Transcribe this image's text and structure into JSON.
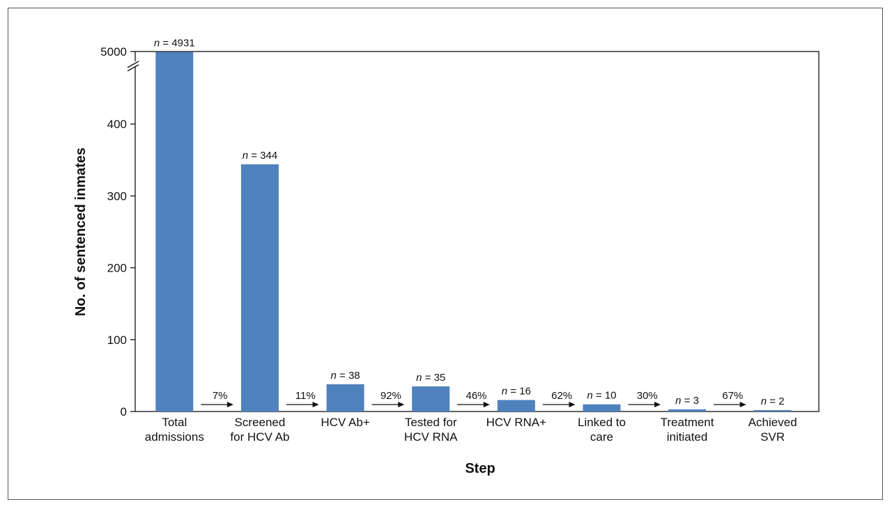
{
  "chart_data": {
    "type": "bar",
    "title": "",
    "xlabel": "Step",
    "ylabel": "No. of sentenced inmates",
    "categories": [
      [
        "Total",
        "admissions"
      ],
      [
        "Screened",
        "for HCV Ab"
      ],
      [
        "HCV Ab+"
      ],
      [
        "Tested for",
        "HCV RNA"
      ],
      [
        "HCV RNA+"
      ],
      [
        "Linked to",
        "care"
      ],
      [
        "Treatment",
        "initiated"
      ],
      [
        "Achieved",
        "SVR"
      ]
    ],
    "values": [
      4931,
      344,
      38,
      35,
      16,
      10,
      3,
      2
    ],
    "value_labels": [
      "n = 4931",
      "n = 344",
      "n = 38",
      "n = 35",
      "n = 16",
      "n = 10",
      "n = 3",
      "n = 2"
    ],
    "step_percentages": [
      "7%",
      "11%",
      "92%",
      "46%",
      "62%",
      "30%",
      "67%"
    ],
    "yticks": [
      0,
      100,
      200,
      300,
      400,
      5000
    ],
    "ylim": [
      0,
      5000
    ],
    "axis_break": "between 400 and 5000",
    "grid": false,
    "colors": {
      "bar": "#4f81bd",
      "axis": "#111111"
    }
  }
}
